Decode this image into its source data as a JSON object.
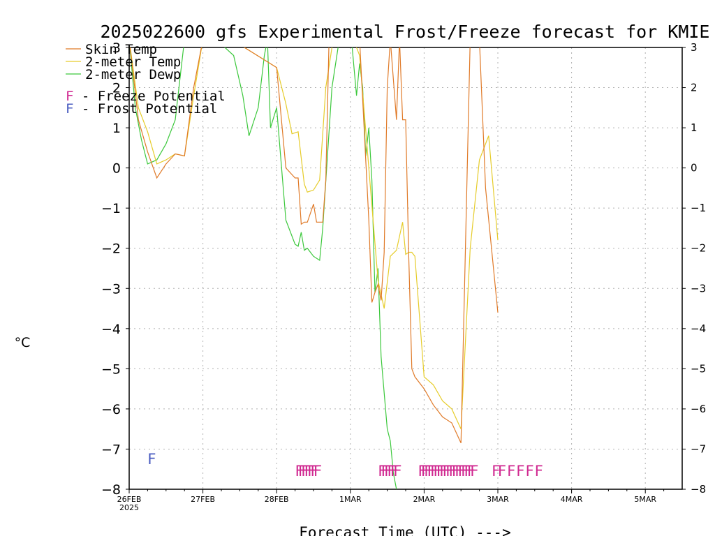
{
  "chart_data": {
    "type": "line",
    "title": "2025022600 gfs Experimental Frost/Freeze forecast for KMIE",
    "ylabel": "°C",
    "xlabel": "Forecast Time (UTC) --->",
    "ylim": [
      -8,
      3
    ],
    "xlim": [
      "2025-02-26T00",
      "2025-03-05T12"
    ],
    "y_ticks": [
      -8,
      -7,
      -6,
      -5,
      -4,
      -3,
      -2,
      -1,
      0,
      1,
      2,
      3
    ],
    "x_ticks": [
      {
        "t": "2025-02-26T00",
        "label": "26FEB",
        "sublabel": "2025"
      },
      {
        "t": "2025-02-27T00",
        "label": "27FEB"
      },
      {
        "t": "2025-02-28T00",
        "label": "28FEB"
      },
      {
        "t": "2025-03-01T00",
        "label": "1MAR"
      },
      {
        "t": "2025-03-02T00",
        "label": "2MAR"
      },
      {
        "t": "2025-03-03T00",
        "label": "3MAR"
      },
      {
        "t": "2025-03-04T00",
        "label": "4MAR"
      },
      {
        "t": "2025-03-05T00",
        "label": "5MAR"
      }
    ],
    "grid": true,
    "legend_position": "top-left",
    "legend": [
      {
        "label": "Skin Temp",
        "color": "#e07a28"
      },
      {
        "label": "2-meter Temp",
        "color": "#e6cc2a"
      },
      {
        "label": "2-meter Dewp",
        "color": "#3cc83c"
      }
    ],
    "potential_legend": [
      {
        "label": "F - Freeze Potential",
        "letter": "F",
        "color": "#d02890"
      },
      {
        "label": "F - Frost Potential",
        "letter": "F",
        "color": "#4a5cc0"
      }
    ],
    "series": [
      {
        "name": "Skin Temp",
        "color": "#e07a28",
        "x": [
          "2025-02-26T00",
          "2025-02-26T03",
          "2025-02-26T06",
          "2025-02-26T09",
          "2025-02-26T12",
          "2025-02-26T15",
          "2025-02-26T18",
          "2025-02-26T21",
          "2025-02-27T00",
          "2025-02-27T03",
          "2025-02-28T00",
          "2025-02-28T03",
          "2025-02-28T06",
          "2025-02-28T07",
          "2025-02-28T08",
          "2025-02-28T09",
          "2025-02-28T10",
          "2025-02-28T12",
          "2025-02-28T13",
          "2025-02-28T14",
          "2025-02-28T15",
          "2025-02-28T16",
          "2025-02-28T17",
          "2025-02-28T18",
          "2025-02-28T21",
          "2025-03-01T00",
          "2025-03-01T03",
          "2025-03-01T06",
          "2025-03-01T07",
          "2025-03-01T08",
          "2025-03-01T09",
          "2025-03-01T10",
          "2025-03-01T11",
          "2025-03-01T12",
          "2025-03-01T13",
          "2025-03-01T15",
          "2025-03-01T16",
          "2025-03-01T17",
          "2025-03-01T18",
          "2025-03-01T19",
          "2025-03-01T20",
          "2025-03-01T21",
          "2025-03-02T00",
          "2025-03-02T03",
          "2025-03-02T06",
          "2025-03-02T09",
          "2025-03-02T12",
          "2025-03-02T15",
          "2025-03-02T18",
          "2025-03-02T20",
          "2025-03-03T00"
        ],
        "values": [
          3.2,
          1.2,
          0.4,
          -0.25,
          0.1,
          0.35,
          0.3,
          2.0,
          3.2,
          3.5,
          2.5,
          0.0,
          -0.25,
          -0.25,
          -1.4,
          -1.35,
          -1.35,
          -0.9,
          -1.35,
          -1.35,
          -1.35,
          -0.3,
          3.0,
          3.2,
          3.5,
          3.4,
          3.2,
          -1.3,
          -3.35,
          -3.1,
          -2.9,
          -3.3,
          -2.1,
          2.0,
          3.2,
          1.2,
          3.2,
          1.2,
          1.2,
          -2.2,
          -5.0,
          -5.2,
          -5.5,
          -5.9,
          -6.2,
          -6.35,
          -6.85,
          3.2,
          3.2,
          -0.5,
          -3.6
        ]
      },
      {
        "name": "2-meter Temp",
        "color": "#e6cc2a",
        "x": [
          "2025-02-26T00",
          "2025-02-26T03",
          "2025-02-26T06",
          "2025-02-26T09",
          "2025-02-26T12",
          "2025-02-26T15",
          "2025-02-26T18",
          "2025-02-26T21",
          "2025-02-27T00",
          "2025-02-27T03",
          "2025-02-28T00",
          "2025-02-28T03",
          "2025-02-28T05",
          "2025-02-28T07",
          "2025-02-28T09",
          "2025-02-28T10",
          "2025-02-28T12",
          "2025-02-28T14",
          "2025-02-28T16",
          "2025-02-28T18",
          "2025-02-28T21",
          "2025-03-01T00",
          "2025-03-01T03",
          "2025-03-01T06",
          "2025-03-01T09",
          "2025-03-01T11",
          "2025-03-01T13",
          "2025-03-01T15",
          "2025-03-01T17",
          "2025-03-01T18",
          "2025-03-01T19",
          "2025-03-01T20",
          "2025-03-01T21",
          "2025-03-02T00",
          "2025-03-02T03",
          "2025-03-02T06",
          "2025-03-02T09",
          "2025-03-02T12",
          "2025-03-02T15",
          "2025-03-02T18",
          "2025-03-02T21",
          "2025-03-03T00"
        ],
        "values": [
          3.2,
          1.5,
          0.9,
          0.1,
          0.2,
          0.35,
          0.3,
          1.8,
          3.2,
          3.5,
          2.5,
          1.6,
          0.85,
          0.9,
          -0.4,
          -0.6,
          -0.55,
          -0.3,
          2.0,
          3.0,
          3.5,
          3.4,
          2.8,
          0.0,
          -2.8,
          -3.5,
          -2.2,
          -2.05,
          -1.35,
          -2.15,
          -2.1,
          -2.1,
          -2.2,
          -5.2,
          -5.4,
          -5.8,
          -6.0,
          -6.5,
          -2.0,
          0.2,
          0.8,
          -1.8
        ]
      },
      {
        "name": "2-meter Dewp",
        "color": "#3cc83c",
        "x": [
          "2025-02-26T00",
          "2025-02-26T02",
          "2025-02-26T04",
          "2025-02-26T06",
          "2025-02-26T09",
          "2025-02-26T12",
          "2025-02-26T15",
          "2025-02-26T18",
          "2025-02-26T21",
          "2025-02-27T00",
          "2025-02-27T10",
          "2025-02-27T13",
          "2025-02-27T15",
          "2025-02-27T18",
          "2025-02-27T20",
          "2025-02-27T21",
          "2025-02-27T22",
          "2025-02-28T00",
          "2025-02-28T03",
          "2025-02-28T06",
          "2025-02-28T07",
          "2025-02-28T08",
          "2025-02-28T09",
          "2025-02-28T10",
          "2025-02-28T12",
          "2025-02-28T14",
          "2025-02-28T15",
          "2025-02-28T18",
          "2025-02-28T21",
          "2025-03-01T00",
          "2025-03-01T02",
          "2025-03-01T03",
          "2025-03-01T04",
          "2025-03-01T05",
          "2025-03-01T06",
          "2025-03-01T07",
          "2025-03-01T08",
          "2025-03-01T09",
          "2025-03-01T10",
          "2025-03-01T11",
          "2025-03-01T12",
          "2025-03-01T13",
          "2025-03-01T14",
          "2025-03-01T15"
        ],
        "values": [
          3.2,
          1.5,
          0.7,
          0.1,
          0.2,
          0.6,
          1.2,
          3.2,
          3.5,
          3.5,
          2.8,
          1.8,
          0.8,
          1.5,
          2.8,
          3.2,
          1.0,
          1.5,
          -1.3,
          -1.9,
          -1.95,
          -1.6,
          -2.05,
          -2.0,
          -2.2,
          -2.3,
          -1.5,
          2.0,
          3.5,
          3.5,
          1.8,
          2.6,
          2.0,
          0.3,
          1.0,
          -0.3,
          -3.1,
          -2.5,
          -4.7,
          -5.6,
          -6.5,
          -6.8,
          -7.6,
          -8.0
        ]
      }
    ],
    "markers": [
      {
        "x": [
          "2025-02-26T06"
        ],
        "letter": "F",
        "color": "#4a5cc0",
        "y": -7.2
      },
      {
        "x": [
          "2025-02-28T06",
          "2025-02-28T07",
          "2025-02-28T08",
          "2025-02-28T09",
          "2025-02-28T10",
          "2025-02-28T11",
          "2025-02-28T12"
        ],
        "letter": "F",
        "color": "#d02890",
        "y": -7.5
      },
      {
        "x": [
          "2025-03-01T09",
          "2025-03-01T10",
          "2025-03-01T11",
          "2025-03-01T12",
          "2025-03-01T13",
          "2025-03-01T14"
        ],
        "letter": "F",
        "color": "#d02890",
        "y": -7.5
      },
      {
        "x": [
          "2025-03-01T22",
          "2025-03-01T23",
          "2025-03-02T00",
          "2025-03-02T01",
          "2025-03-02T02",
          "2025-03-02T03",
          "2025-03-02T04",
          "2025-03-02T05",
          "2025-03-02T06",
          "2025-03-02T07",
          "2025-03-02T08",
          "2025-03-02T09",
          "2025-03-02T10",
          "2025-03-02T11",
          "2025-03-02T12",
          "2025-03-02T13",
          "2025-03-02T14",
          "2025-03-02T15"
        ],
        "letter": "F",
        "color": "#d02890",
        "y": -7.5
      },
      {
        "x": [
          "2025-03-02T22",
          "2025-03-03T00",
          "2025-03-03T03",
          "2025-03-03T06",
          "2025-03-03T09",
          "2025-03-03T12"
        ],
        "letter": "F",
        "color": "#d02890",
        "y": -7.5
      }
    ]
  }
}
